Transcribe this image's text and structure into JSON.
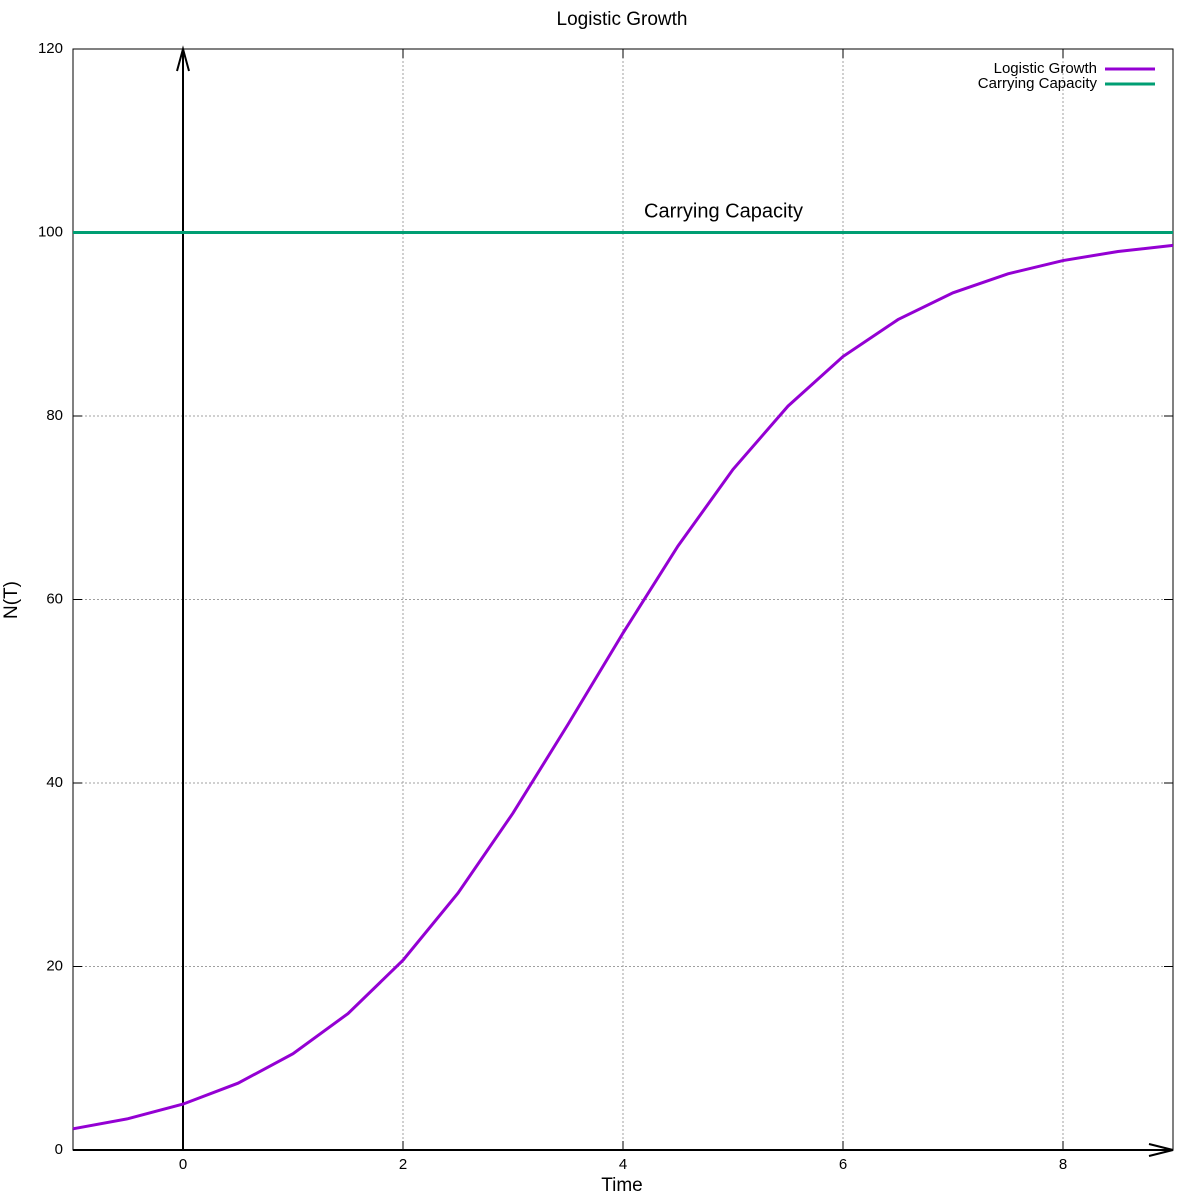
{
  "chart_data": {
    "type": "line",
    "title": "Logistic Growth",
    "x_label": "Time",
    "y_label": "N(T)",
    "x": [
      -1,
      -0.5,
      0,
      0.5,
      1,
      1.5,
      2,
      2.5,
      3,
      3.5,
      4,
      4.5,
      5,
      5.5,
      6,
      6.5,
      7,
      7.5,
      8,
      8.5,
      9
    ],
    "series": [
      {
        "name": "Logistic Growth",
        "color": "#9400d3",
        "values": [
          2.31,
          3.41,
          5.0,
          7.28,
          10.49,
          14.87,
          20.68,
          28.0,
          36.72,
          46.39,
          56.34,
          65.83,
          74.18,
          81.08,
          86.48,
          90.51,
          93.43,
          95.5,
          96.94,
          97.93,
          98.6
        ]
      },
      {
        "name": "Carrying Capacity",
        "color": "#009e73",
        "values": [
          100,
          100,
          100,
          100,
          100,
          100,
          100,
          100,
          100,
          100,
          100,
          100,
          100,
          100,
          100,
          100,
          100,
          100,
          100,
          100,
          100
        ]
      }
    ],
    "annotation": "Carrying Capacity",
    "xlim": [
      -1,
      9
    ],
    "xticks": [
      0,
      2,
      4,
      6,
      8
    ],
    "ylim": [
      0,
      120
    ],
    "yticks": [
      0,
      20,
      40,
      60,
      80,
      100,
      120
    ],
    "grid": true,
    "legend": "top-right"
  }
}
